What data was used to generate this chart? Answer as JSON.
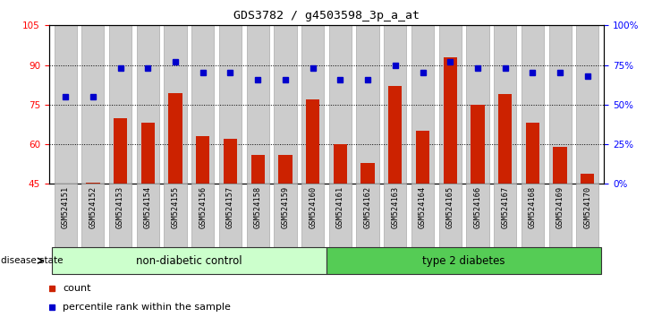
{
  "title": "GDS3782 / g4503598_3p_a_at",
  "samples": [
    "GSM524151",
    "GSM524152",
    "GSM524153",
    "GSM524154",
    "GSM524155",
    "GSM524156",
    "GSM524157",
    "GSM524158",
    "GSM524159",
    "GSM524160",
    "GSM524161",
    "GSM524162",
    "GSM524163",
    "GSM524164",
    "GSM524165",
    "GSM524166",
    "GSM524167",
    "GSM524168",
    "GSM524169",
    "GSM524170"
  ],
  "bar_values": [
    45.2,
    45.6,
    70.0,
    68.0,
    79.5,
    63.0,
    62.0,
    56.0,
    56.0,
    77.0,
    60.0,
    53.0,
    82.0,
    65.0,
    93.0,
    75.0,
    79.0,
    68.0,
    59.0,
    49.0
  ],
  "dot_values_pct": [
    55,
    55,
    73,
    73,
    77,
    70,
    70,
    66,
    66,
    73,
    66,
    66,
    75,
    70,
    77,
    73,
    73,
    70,
    70,
    68
  ],
  "bar_color": "#cc2200",
  "dot_color": "#0000cc",
  "ylim_left": [
    45,
    105
  ],
  "ylim_right": [
    0,
    100
  ],
  "yticks_left": [
    45,
    60,
    75,
    90,
    105
  ],
  "yticks_right": [
    0,
    25,
    50,
    75,
    100
  ],
  "ytick_labels_right": [
    "0%",
    "25%",
    "50%",
    "75%",
    "100%"
  ],
  "groups": [
    {
      "label": "non-diabetic control",
      "start": 0,
      "end": 10,
      "color": "#ccffcc"
    },
    {
      "label": "type 2 diabetes",
      "start": 10,
      "end": 20,
      "color": "#55cc55"
    }
  ],
  "disease_state_label": "disease state",
  "legend_count_label": "count",
  "legend_pct_label": "percentile rank within the sample",
  "bar_bg_color": "#cccccc",
  "bar_bg_edge_color": "#aaaaaa",
  "plot_bg": "#ffffff",
  "bar_width": 0.5,
  "bg_bar_width": 0.82
}
